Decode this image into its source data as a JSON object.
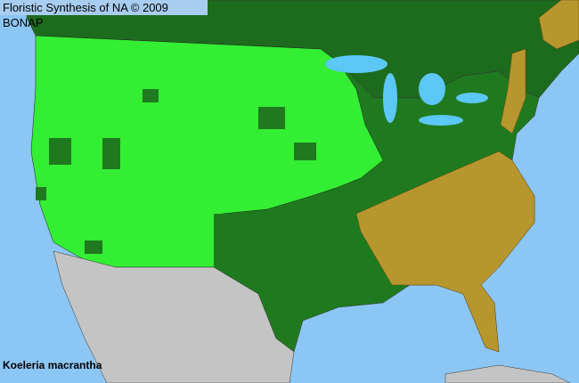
{
  "title": "Floristic Synthesis of NA © 2009 BONAP",
  "species": "Koeleria macrantha",
  "colors": {
    "ocean": "#8cc6f4",
    "lakes": "#5cc8f8",
    "present_native": "#33ee33",
    "present_county": "#1f7a1f",
    "canada": "#1d6b1d",
    "absent_state": "#b8962e",
    "mexico": "#c4c4c4"
  }
}
